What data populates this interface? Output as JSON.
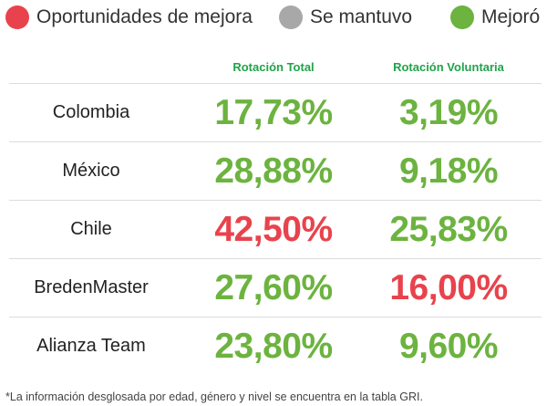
{
  "legend": [
    {
      "label": "Oportunidades de mejora",
      "color": "#e8434d"
    },
    {
      "label": "Se mantuvo",
      "color": "#a8a8a8"
    },
    {
      "label": "Mejoró",
      "color": "#6cb33f"
    }
  ],
  "colors": {
    "red": "#e8434d",
    "green": "#6cb33f",
    "header_green": "#22a24a"
  },
  "chart_data": {
    "type": "table",
    "columns": [
      "",
      "Rotación Total",
      "Rotación  Voluntaria"
    ],
    "rows": [
      {
        "country": "Colombia",
        "total": "17,73%",
        "total_status": "Mejoró",
        "voluntaria": "3,19%",
        "voluntaria_status": "Mejoró"
      },
      {
        "country": "México",
        "total": "28,88%",
        "total_status": "Mejoró",
        "voluntaria": "9,18%",
        "voluntaria_status": "Mejoró"
      },
      {
        "country": "Chile",
        "total": "42,50%",
        "total_status": "Oportunidades de mejora",
        "voluntaria": "25,83%",
        "voluntaria_status": "Mejoró"
      },
      {
        "country": "BredenMaster",
        "total": "27,60%",
        "total_status": "Mejoró",
        "voluntaria": "16,00%",
        "voluntaria_status": "Oportunidades de mejora"
      },
      {
        "country": "Alianza Team",
        "total": "23,80%",
        "total_status": "Mejoró",
        "voluntaria": "9,60%",
        "voluntaria_status": "Mejoró"
      }
    ]
  },
  "footnote": "*La información desglosada por edad, género y nivel se encuentra en la tabla GRI."
}
